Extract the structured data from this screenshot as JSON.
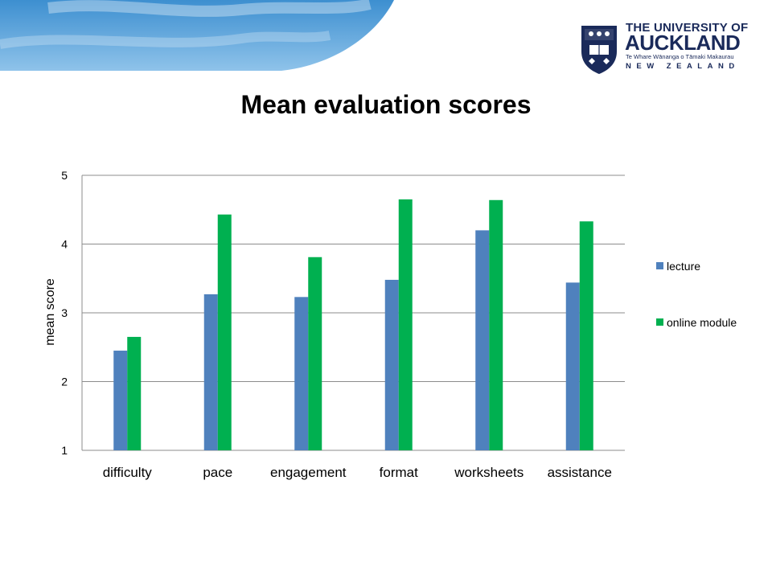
{
  "header": {
    "logo": {
      "line1": "THE UNIVERSITY OF",
      "line2": "AUCKLAND",
      "line3": "Te Whare Wānanga o Tāmaki Makaurau",
      "line4": "NEW ZEALAND"
    }
  },
  "chart_data": {
    "type": "bar",
    "title": "Mean evaluation scores",
    "xlabel": "",
    "ylabel": "mean score",
    "ylim": [
      1,
      5
    ],
    "yticks": [
      1,
      2,
      3,
      4,
      5
    ],
    "grid": true,
    "legend_position": "right",
    "categories": [
      "difficulty",
      "pace",
      "engagement",
      "format",
      "worksheets",
      "assistance"
    ],
    "series": [
      {
        "name": "lecture",
        "color": "#4f81bd",
        "values": [
          2.45,
          3.27,
          3.23,
          3.48,
          4.2,
          3.44
        ]
      },
      {
        "name": "online module",
        "color": "#00b050",
        "values": [
          2.65,
          4.43,
          3.81,
          4.65,
          4.64,
          4.33
        ]
      }
    ]
  }
}
